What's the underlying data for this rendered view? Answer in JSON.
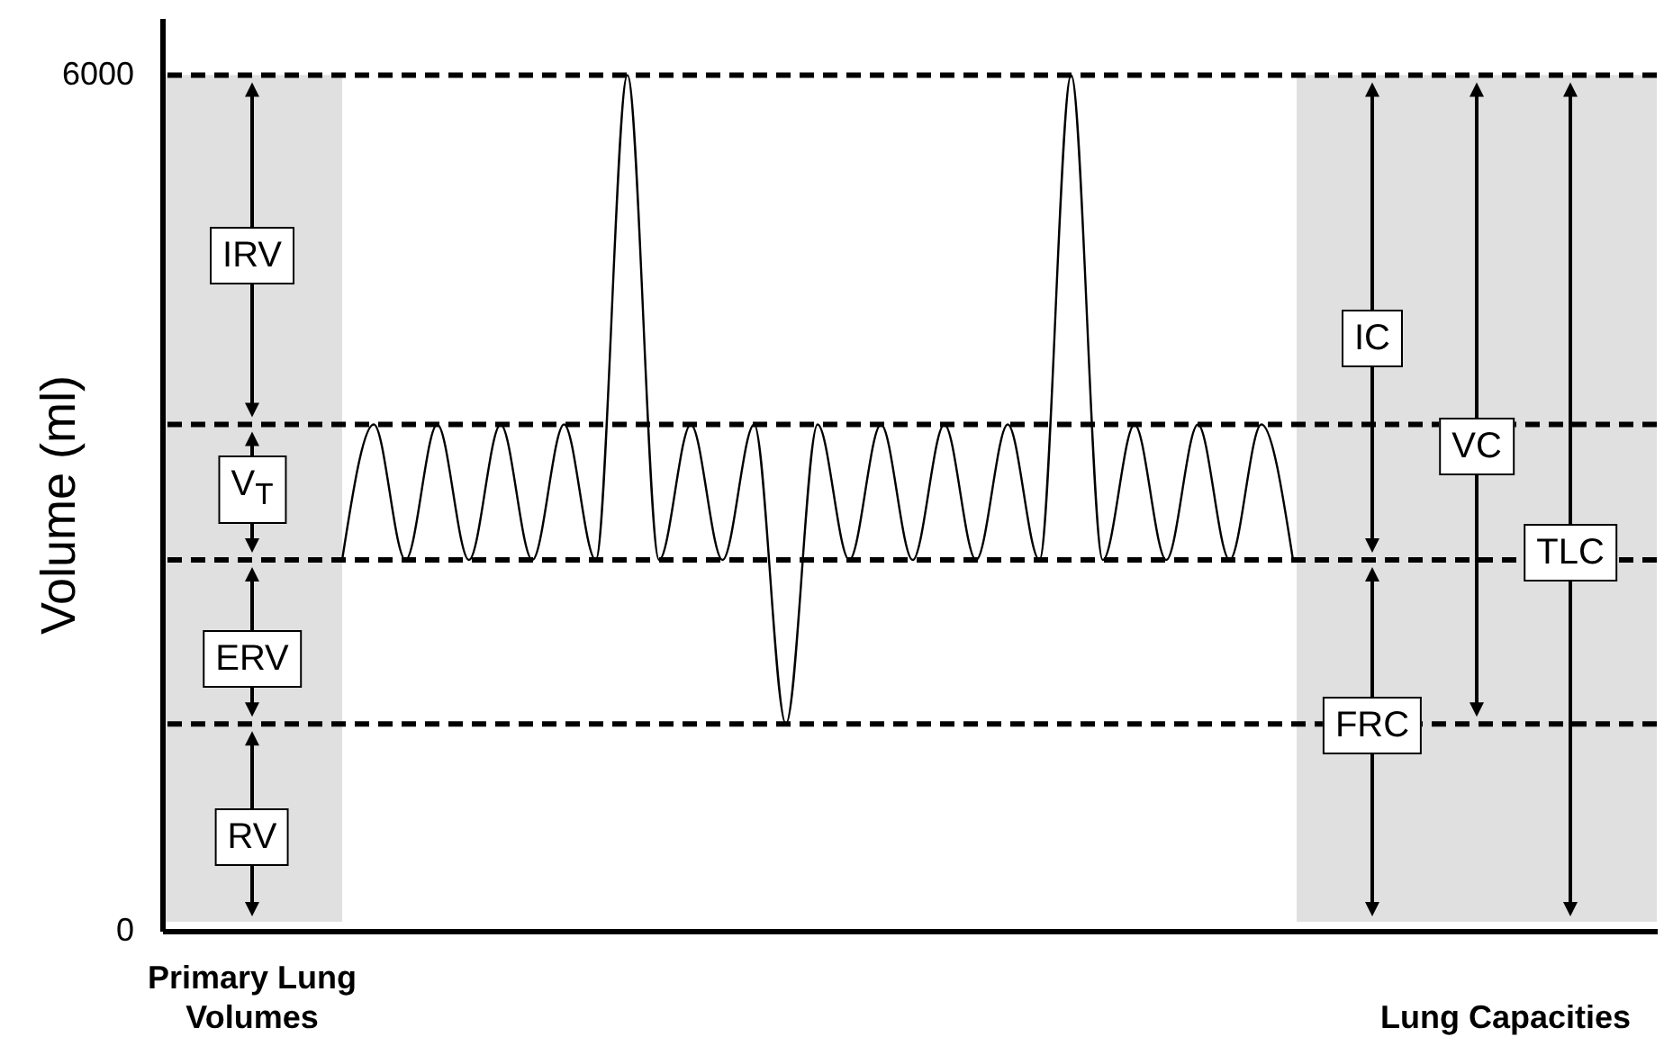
{
  "chart_data": {
    "type": "line",
    "ylabel": "Volume (ml)",
    "categories": [
      null,
      null,
      null,
      null,
      null,
      null,
      null,
      null,
      null,
      null,
      null,
      null,
      null,
      null,
      null,
      null,
      null,
      null,
      null,
      null,
      null,
      null,
      null,
      null,
      null,
      null,
      null,
      null,
      null,
      null,
      null
    ],
    "values": [
      2600,
      3550,
      2600,
      3550,
      2600,
      3550,
      2600,
      3550,
      2600,
      6000,
      2600,
      3550,
      2600,
      3550,
      1450,
      3550,
      2600,
      3550,
      2600,
      3550,
      2600,
      3550,
      2600,
      6000,
      2600,
      3550,
      2600,
      3550,
      2600,
      3550,
      2600
    ],
    "color": "#000000",
    "ylim": [
      0,
      6400
    ],
    "yticks": [
      0,
      6000
    ],
    "grid": false,
    "ref_lines": [
      {
        "axis": "y",
        "value": 6000,
        "line_style": "dashed",
        "color": "#000000"
      },
      {
        "axis": "y",
        "value": 3550,
        "line_style": "dashed",
        "color": "#000000"
      },
      {
        "axis": "y",
        "value": 2600,
        "line_style": "dashed",
        "color": "#000000"
      },
      {
        "axis": "y",
        "value": 1450,
        "line_style": "dashed",
        "color": "#000000"
      }
    ],
    "annotations": [
      "IRV",
      "V$_{T}$",
      "ERV",
      "RV",
      "IC",
      "VC",
      "TLC",
      "FRC",
      "Primary Lung Volumes",
      "Lung Capacities"
    ]
  }
}
